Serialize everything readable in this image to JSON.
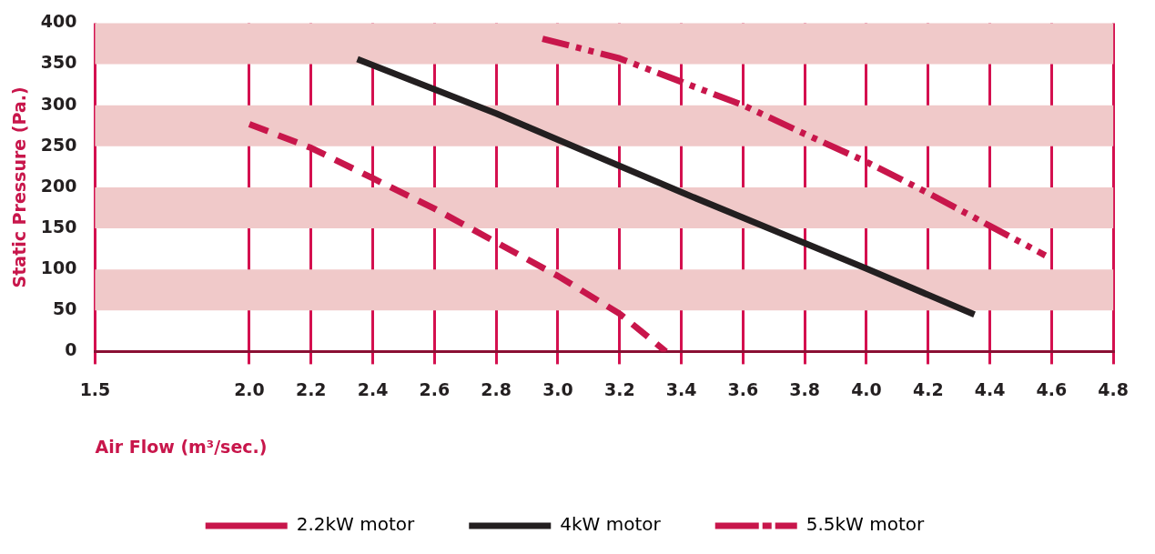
{
  "chart_data": {
    "type": "line",
    "xlabel": "Air Flow (m³/sec.)",
    "ylabel": "Static Pressure (Pa.)",
    "xlim": [
      1.5,
      4.8
    ],
    "xticks": [
      1.5,
      {
        "value": 2,
        "label": "2.0"
      },
      2.2,
      2.4,
      2.6,
      2.8,
      {
        "value": 3,
        "label": "3.0"
      },
      3.2,
      3.4,
      3.6,
      3.8,
      {
        "value": 4,
        "label": "4.0"
      },
      4.2,
      4.4,
      4.6,
      4.8
    ],
    "ylim": [
      0,
      400
    ],
    "yticks": [
      0,
      50,
      100,
      150,
      200,
      250,
      300,
      350,
      400
    ],
    "grid": "x",
    "legend": "bottom",
    "marker": "none",
    "bands": [
      {
        "axis": "y",
        "from": 50,
        "to": 100,
        "color": "#f0c9c9"
      },
      {
        "axis": "y",
        "from": 150,
        "to": 200,
        "color": "#f0c9c9"
      },
      {
        "axis": "y",
        "from": 250,
        "to": 300,
        "color": "#f0c9c9"
      },
      {
        "axis": "y",
        "from": 350,
        "to": 400,
        "color": "#f0c9c9"
      }
    ],
    "series": [
      {
        "name": "2.2kW motor",
        "color": "#c8164b",
        "line_style": "dashed",
        "x": [
          2.0,
          2.2,
          2.4,
          2.6,
          2.8,
          3.0,
          3.2,
          3.35
        ],
        "values": [
          277,
          248,
          211,
          174,
          133,
          92,
          46,
          0
        ]
      },
      {
        "name": "4kW motor",
        "color": "#231f20",
        "line_style": "solid",
        "x": [
          2.35,
          2.8,
          3.4,
          4.0,
          4.35
        ],
        "values": [
          356,
          290,
          194,
          101,
          45
        ]
      },
      {
        "name": "5.5kW motor",
        "color": "#c8164b",
        "line_style": "dashdot",
        "x": [
          2.95,
          3.2,
          3.6,
          3.8,
          4.0,
          4.2,
          4.4,
          4.58
        ],
        "values": [
          381,
          357,
          300,
          265,
          231,
          193,
          153,
          117
        ]
      }
    ]
  }
}
